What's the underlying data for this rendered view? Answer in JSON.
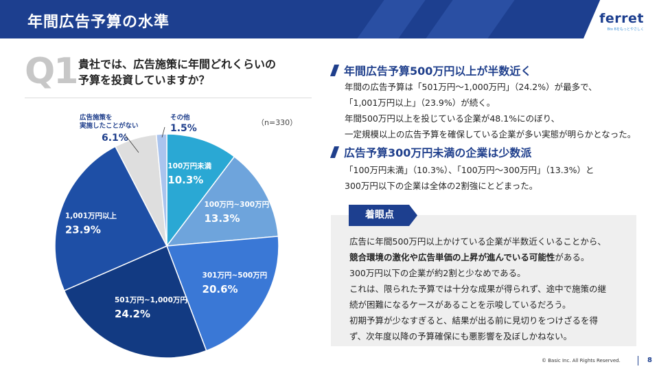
{
  "header": {
    "title": "年間広告予算の水準",
    "logo": "ferret",
    "logo_sub": "Bto Bをもっとやさしく"
  },
  "question": {
    "badge": "Q1",
    "line1": "貴社では、広告施策に年間どれくらいの",
    "line2": "予算を投資していますか？",
    "n": "（n=330）"
  },
  "chart_data": {
    "type": "pie",
    "start": "12 o'clock, clockwise",
    "slices": [
      {
        "label": "100万円未満",
        "value": 10.3,
        "display": "10.3%",
        "color": "#2aa8d4"
      },
      {
        "label": "100万円~300万円",
        "value": 13.3,
        "display": "13.3%",
        "color": "#6ea4dc"
      },
      {
        "label": "301万円~500万円",
        "value": 20.6,
        "display": "20.6%",
        "color": "#3a78d6"
      },
      {
        "label": "501万円~1,000万円",
        "value": 24.2,
        "display": "24.2%",
        "color": "#123a82"
      },
      {
        "label": "1,001万円以上",
        "value": 23.9,
        "display": "23.9%",
        "color": "#1e4fa6"
      },
      {
        "label": "広告施策を実施したことがない",
        "value": 6.1,
        "display": "6.1%",
        "color": "#dedede"
      },
      {
        "label": "その他",
        "value": 1.5,
        "display": "1.5%",
        "color": "#aac4ee"
      }
    ]
  },
  "outside_labels": {
    "never_line1": "広告施策を",
    "never_line2": "実施したことがない",
    "never_value": "6.1%",
    "other_name": "その他",
    "other_value": "1.5%"
  },
  "section1": {
    "heading": "年間広告予算500万円以上が半数近く",
    "lines": [
      "年間の広告予算は「501万円～1,000万円」（24.2%）が最多で、",
      "「1,001万円以上」（23.9%）が続く。",
      "年間500万円以上を投じている企業が48.1%にのぼり、",
      "一定規模以上の広告予算を確保している企業が多い実態が明らかとなった。"
    ]
  },
  "section2": {
    "heading": "広告予算300万円未満の企業は少数派",
    "lines": [
      "「100万円未満」（10.3%）、「100万円～300万円」（13.3%）と",
      "300万円以下の企業は全体の2割強にとどまった。"
    ]
  },
  "focus": {
    "tag": "着眼点",
    "line1": "広告に年間500万円以上かけている企業が半数近くいることから、",
    "line2_bold": "競合環境の激化や広告単価の上昇が進んでいる可能性",
    "line2_rest": "がある。",
    "line3": "300万円以下の企業が約2割と少なめである。",
    "line4": "これは、限られた予算では十分な成果が得られず、途中で施策の継",
    "line5": "続が困難になるケースがあることを示唆しているだろう。",
    "line6": "初期予算が少なすぎると、結果が出る前に見切りをつけざるを得",
    "line7": "ず、次年度以降の予算確保にも悪影響を及ぼしかねない。"
  },
  "footer": {
    "copyright": "© Basic Inc. All Rights Reserved.",
    "page": "8"
  }
}
